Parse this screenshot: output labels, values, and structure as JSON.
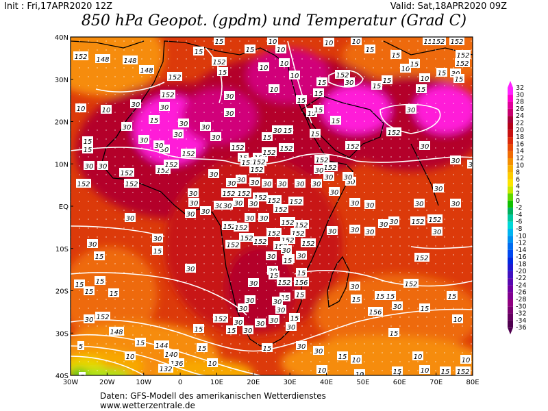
{
  "header": {
    "init": "Init : Fri,17APR2020 12Z",
    "valid": "Valid: Sat,18APR2020 09Z",
    "title": "850 hPa Geopot. (gpdm) und Temperatur (Grad C)"
  },
  "footer": {
    "line1": "Daten: GFS-Modell des amerikanischen Wetterdienstes",
    "line2": "www.wetterzentrale.de"
  },
  "axes": {
    "lat_labels": [
      "40N",
      "30N",
      "20N",
      "10N",
      "EQ",
      "10S",
      "20S",
      "30S",
      "40S"
    ],
    "lon_labels": [
      "30W",
      "20W",
      "10W",
      "0",
      "10E",
      "20E",
      "30E",
      "40E",
      "50E",
      "60E",
      "70E",
      "80E"
    ]
  },
  "legend": {
    "levels": [
      "32",
      "30",
      "28",
      "26",
      "24",
      "22",
      "20",
      "18",
      "16",
      "14",
      "12",
      "10",
      "8",
      "6",
      "4",
      "2",
      "0",
      "-2",
      "-4",
      "-6",
      "-8",
      "-10",
      "-12",
      "-14",
      "-16",
      "-18",
      "-20",
      "-22",
      "-24",
      "-26",
      "-28",
      "-30",
      "-32",
      "-34",
      "-36"
    ],
    "colors": [
      "#ff22ff",
      "#ff00cc",
      "#e0009a",
      "#c8006e",
      "#a80038",
      "#b40018",
      "#c81010",
      "#dc2a0a",
      "#e84a06",
      "#f06c04",
      "#f49002",
      "#f8b000",
      "#fccc00",
      "#fce400",
      "#c8e800",
      "#60d800",
      "#10c000",
      "#00b060",
      "#00c8a0",
      "#00d8d8",
      "#00b4f0",
      "#0090f0",
      "#006cf0",
      "#0048f0",
      "#0028e0",
      "#2018d0",
      "#4010c0",
      "#5808b0",
      "#7000a0",
      "#800090",
      "#900080",
      "#7a0070",
      "#640060",
      "#500050"
    ]
  },
  "contour_labels": [
    "152",
    "148",
    "144",
    "140",
    "136",
    "132",
    "156",
    "30",
    "20",
    "15",
    "10",
    "5"
  ],
  "map_colors": {
    "hot_pink": "#ff1fd8",
    "magenta": "#d1007a",
    "crimson": "#b4002a",
    "red": "#c81818",
    "red_orange": "#dc3a0a",
    "orange": "#ee6a08",
    "light_orange": "#f68c08",
    "yellow_orange": "#f8a804",
    "yellow": "#e8d800",
    "green": "#2ec81a",
    "lime": "#a8e41a"
  }
}
